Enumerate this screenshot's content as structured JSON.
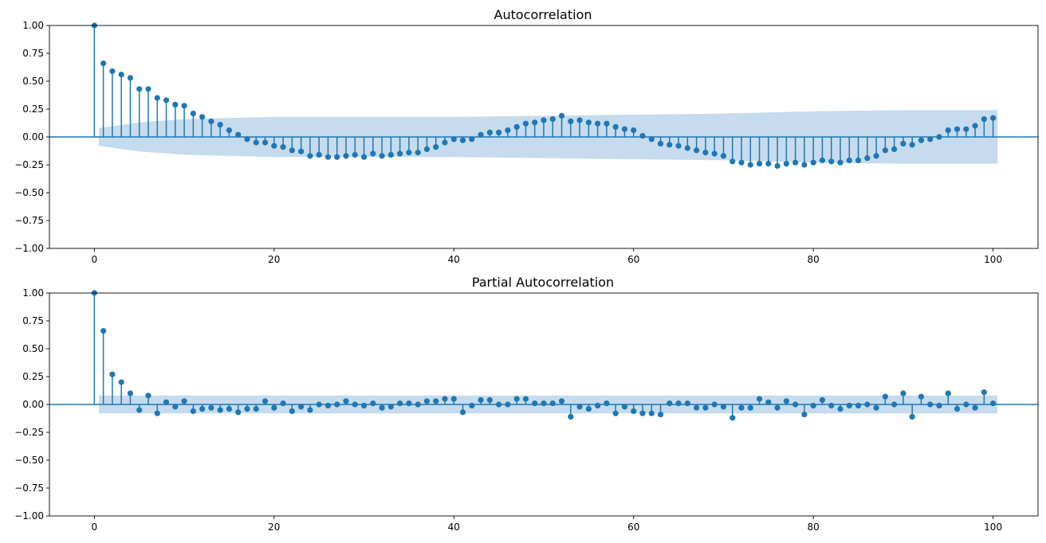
{
  "chart_data": [
    {
      "type": "stem",
      "title": "Autocorrelation",
      "xlabel": "",
      "ylabel": "",
      "xlim": [
        -5,
        105
      ],
      "ylim": [
        -1.0,
        1.0
      ],
      "xticks": [
        "0",
        "20",
        "40",
        "60",
        "80",
        "100"
      ],
      "yticks": [
        "1.00",
        "0.75",
        "0.50",
        "0.25",
        "0.00",
        "−0.25",
        "−0.50",
        "−0.75",
        "−1.00"
      ],
      "color": "#1f77b4",
      "band_color": "#c6dbed",
      "lags": [
        0,
        1,
        2,
        3,
        4,
        5,
        6,
        7,
        8,
        9,
        10,
        11,
        12,
        13,
        14,
        15,
        16,
        17,
        18,
        19,
        20,
        21,
        22,
        23,
        24,
        25,
        26,
        27,
        28,
        29,
        30,
        31,
        32,
        33,
        34,
        35,
        36,
        37,
        38,
        39,
        40,
        41,
        42,
        43,
        44,
        45,
        46,
        47,
        48,
        49,
        50,
        51,
        52,
        53,
        54,
        55,
        56,
        57,
        58,
        59,
        60,
        61,
        62,
        63,
        64,
        65,
        66,
        67,
        68,
        69,
        70,
        71,
        72,
        73,
        74,
        75,
        76,
        77,
        78,
        79,
        80,
        81,
        82,
        83,
        84,
        85,
        86,
        87,
        88,
        89,
        90,
        91,
        92,
        93,
        94,
        95,
        96,
        97,
        98,
        99,
        100
      ],
      "values": [
        1.0,
        0.66,
        0.59,
        0.56,
        0.53,
        0.43,
        0.43,
        0.35,
        0.33,
        0.29,
        0.28,
        0.21,
        0.18,
        0.14,
        0.11,
        0.06,
        0.02,
        -0.02,
        -0.05,
        -0.05,
        -0.08,
        -0.09,
        -0.12,
        -0.13,
        -0.17,
        -0.16,
        -0.18,
        -0.18,
        -0.17,
        -0.16,
        -0.18,
        -0.15,
        -0.17,
        -0.16,
        -0.15,
        -0.14,
        -0.14,
        -0.11,
        -0.09,
        -0.05,
        -0.02,
        -0.03,
        -0.02,
        0.02,
        0.04,
        0.04,
        0.06,
        0.09,
        0.12,
        0.13,
        0.15,
        0.16,
        0.19,
        0.14,
        0.15,
        0.13,
        0.12,
        0.12,
        0.09,
        0.07,
        0.06,
        0.01,
        -0.02,
        -0.06,
        -0.07,
        -0.08,
        -0.1,
        -0.12,
        -0.14,
        -0.15,
        -0.17,
        -0.22,
        -0.23,
        -0.25,
        -0.24,
        -0.24,
        -0.26,
        -0.24,
        -0.23,
        -0.25,
        -0.23,
        -0.21,
        -0.22,
        -0.23,
        -0.21,
        -0.21,
        -0.19,
        -0.17,
        -0.12,
        -0.11,
        -0.06,
        -0.07,
        -0.03,
        -0.02,
        0.0,
        0.06,
        0.07,
        0.07,
        0.1,
        0.16,
        0.17
      ],
      "confidence_band": {
        "lags": [
          0.5,
          5,
          10,
          20,
          30,
          40,
          50,
          60,
          70,
          80,
          90,
          100.5
        ],
        "upper": [
          0.08,
          0.13,
          0.16,
          0.18,
          0.18,
          0.18,
          0.19,
          0.2,
          0.21,
          0.23,
          0.24,
          0.24
        ]
      }
    },
    {
      "type": "stem",
      "title": "Partial Autocorrelation",
      "xlabel": "",
      "ylabel": "",
      "xlim": [
        -5,
        105
      ],
      "ylim": [
        -1.0,
        1.0
      ],
      "xticks": [
        "0",
        "20",
        "40",
        "60",
        "80",
        "100"
      ],
      "yticks": [
        "1.00",
        "0.75",
        "0.50",
        "0.25",
        "0.00",
        "−0.25",
        "−0.50",
        "−0.75",
        "−1.00"
      ],
      "color": "#1f77b4",
      "band_color": "#c6dbed",
      "lags": [
        0,
        1,
        2,
        3,
        4,
        5,
        6,
        7,
        8,
        9,
        10,
        11,
        12,
        13,
        14,
        15,
        16,
        17,
        18,
        19,
        20,
        21,
        22,
        23,
        24,
        25,
        26,
        27,
        28,
        29,
        30,
        31,
        32,
        33,
        34,
        35,
        36,
        37,
        38,
        39,
        40,
        41,
        42,
        43,
        44,
        45,
        46,
        47,
        48,
        49,
        50,
        51,
        52,
        53,
        54,
        55,
        56,
        57,
        58,
        59,
        60,
        61,
        62,
        63,
        64,
        65,
        66,
        67,
        68,
        69,
        70,
        71,
        72,
        73,
        74,
        75,
        76,
        77,
        78,
        79,
        80,
        81,
        82,
        83,
        84,
        85,
        86,
        87,
        88,
        89,
        90,
        91,
        92,
        93,
        94,
        95,
        96,
        97,
        98,
        99,
        100
      ],
      "values": [
        1.0,
        0.66,
        0.27,
        0.2,
        0.1,
        -0.05,
        0.08,
        -0.08,
        0.02,
        -0.02,
        0.03,
        -0.06,
        -0.04,
        -0.03,
        -0.05,
        -0.04,
        -0.07,
        -0.04,
        -0.04,
        0.03,
        -0.03,
        0.01,
        -0.06,
        -0.02,
        -0.05,
        0.0,
        -0.01,
        0.0,
        0.03,
        0.0,
        -0.01,
        0.01,
        -0.03,
        -0.02,
        0.01,
        0.01,
        0.0,
        0.03,
        0.03,
        0.05,
        0.05,
        -0.07,
        -0.01,
        0.04,
        0.04,
        0.0,
        0.0,
        0.05,
        0.05,
        0.01,
        0.01,
        0.01,
        0.03,
        -0.11,
        -0.02,
        -0.04,
        -0.01,
        0.01,
        -0.08,
        -0.02,
        -0.06,
        -0.08,
        -0.08,
        -0.09,
        0.01,
        0.01,
        0.01,
        -0.03,
        -0.03,
        0.0,
        -0.02,
        -0.12,
        -0.03,
        -0.03,
        0.05,
        0.02,
        -0.03,
        0.03,
        0.0,
        -0.09,
        -0.01,
        0.04,
        -0.01,
        -0.04,
        -0.01,
        -0.01,
        0.0,
        -0.03,
        0.07,
        0.0,
        0.1,
        -0.11,
        0.07,
        0.0,
        -0.01,
        0.1,
        -0.04,
        0.0,
        -0.03,
        0.11,
        0.01
      ],
      "confidence_band": {
        "lags": [
          0.5,
          100.5
        ],
        "upper": [
          0.08,
          0.08
        ]
      }
    }
  ]
}
